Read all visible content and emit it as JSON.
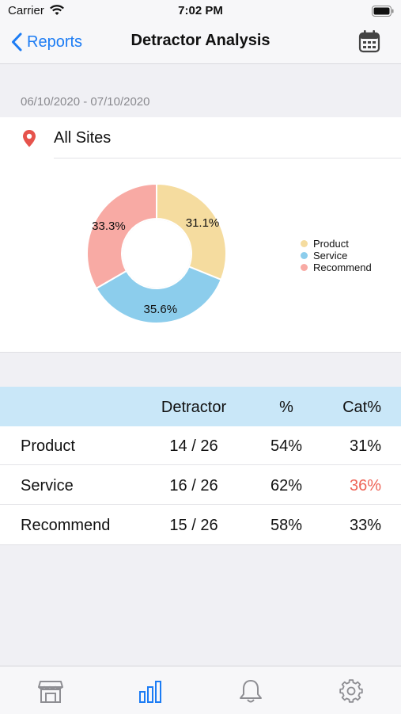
{
  "status_bar": {
    "carrier": "Carrier",
    "time": "7:02 PM",
    "icons": [
      "wifi-icon",
      "battery-icon"
    ]
  },
  "nav": {
    "back_label": "Reports",
    "title": "Detractor Analysis",
    "right_icon": "calendar-icon"
  },
  "date_range": "06/10/2020 - 07/10/2020",
  "site": {
    "icon": "location-pin-icon",
    "label": "All Sites"
  },
  "colors": {
    "accent": "#1c7cf4",
    "product": "#f5dc9f",
    "service": "#8ccdec",
    "recommend": "#f8aaa4",
    "header_bg": "#c9e7f8",
    "highlight": "#ee6457"
  },
  "chart_data": {
    "type": "pie",
    "donut": true,
    "categories": [
      "Product",
      "Service",
      "Recommend"
    ],
    "values": [
      31.1,
      35.6,
      33.3
    ],
    "labels": [
      "31.1%",
      "35.6%",
      "33.3%"
    ],
    "colors": [
      "#f5dc9f",
      "#8ccdec",
      "#f8aaa4"
    ],
    "legend_position": "right"
  },
  "table": {
    "headers": [
      "",
      "Detractor",
      "%",
      "Cat%"
    ],
    "rows": [
      {
        "name": "Product",
        "detractor": "14 / 26",
        "pct": "54%",
        "cat": "31%",
        "cat_highlight": false
      },
      {
        "name": "Service",
        "detractor": "16 / 26",
        "pct": "62%",
        "cat": "36%",
        "cat_highlight": true
      },
      {
        "name": "Recommend",
        "detractor": "15 / 26",
        "pct": "58%",
        "cat": "33%",
        "cat_highlight": false
      }
    ]
  },
  "tab_bar": {
    "tabs": [
      {
        "icon": "store-icon",
        "active": false
      },
      {
        "icon": "bar-chart-icon",
        "active": true
      },
      {
        "icon": "bell-icon",
        "active": false
      },
      {
        "icon": "gear-icon",
        "active": false
      }
    ]
  }
}
